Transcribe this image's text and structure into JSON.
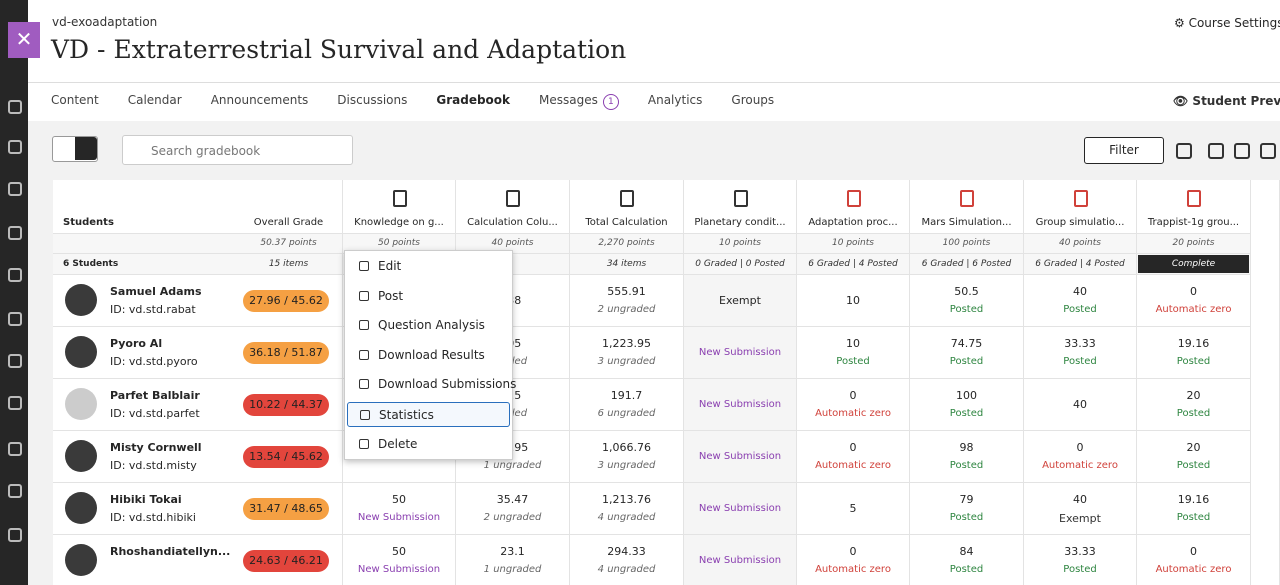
{
  "header": {
    "course_id": "vd-exoadaptation",
    "title": "VD - Extraterrestrial Survival and Adaptation",
    "settings": "Course Settings"
  },
  "nav": {
    "tabs": [
      "Content",
      "Calendar",
      "Announcements",
      "Discussions",
      "Gradebook",
      "Messages",
      "Analytics",
      "Groups"
    ],
    "active": 4,
    "messages_badge": "1",
    "preview": "Student Preview"
  },
  "toolbar": {
    "search_placeholder": "Search gradebook",
    "filter": "Filter"
  },
  "table": {
    "columns": [
      {
        "header": "Students",
        "summary": "6 Students"
      },
      {
        "header": "Overall Grade",
        "points": "50.37 points",
        "summary": "15 items"
      },
      {
        "header": "Knowledge on g...",
        "points": "50 points",
        "icon": "#333"
      },
      {
        "header": "Calculation Colu...",
        "points": "40 points",
        "icon": "#333"
      },
      {
        "header": "Total Calculation",
        "points": "2,270 points",
        "summary": "34 items",
        "icon": "#333"
      },
      {
        "header": "Planetary condit...",
        "points": "10 points",
        "summary": "0 Graded | 0 Posted",
        "icon": "#333"
      },
      {
        "header": "Adaptation proc...",
        "points": "10 points",
        "summary": "6 Graded | 4 Posted",
        "icon": "#d0413a"
      },
      {
        "header": "Mars Simulation...",
        "points": "100 points",
        "summary": "6 Graded | 6 Posted",
        "icon": "#d0413a"
      },
      {
        "header": "Group simulatio...",
        "points": "40 points",
        "summary": "6 Graded | 4 Posted",
        "icon": "#d0413a"
      },
      {
        "header": "Trappist-1g grou...",
        "points": "20 points",
        "summary": "Complete",
        "highlight": true,
        "icon": "#d0413a"
      }
    ],
    "rows": [
      {
        "name": "Samuel Adams",
        "id": "ID: vd.std.rabat",
        "overall": "27.96 / 45.62",
        "pill": "#f5a043",
        "cells": [
          {},
          {
            "value": ".38"
          },
          {
            "value": "555.91",
            "status": "2 ungraded",
            "tone": "gray"
          },
          {
            "value": "Exempt"
          },
          {
            "value": "10"
          },
          {
            "value": "50.5",
            "status": "Posted",
            "tone": "green"
          },
          {
            "value": "40",
            "status": "Posted",
            "tone": "green"
          },
          {
            "value": "0",
            "status": "Automatic zero",
            "tone": "red"
          }
        ]
      },
      {
        "name": "Pyoro Al",
        "id": "ID: vd.std.pyoro",
        "overall": "36.18 / 51.87",
        "pill": "#f5a043",
        "cells": [
          {},
          {
            "value": ".05",
            "status": "raded",
            "tone": "gray"
          },
          {
            "value": "1,223.95",
            "status": "3 ungraded",
            "tone": "gray"
          },
          {
            "status": "New Submission",
            "tone": "purple"
          },
          {
            "value": "10",
            "status": "Posted",
            "tone": "green"
          },
          {
            "value": "74.75",
            "status": "Posted",
            "tone": "green"
          },
          {
            "value": "33.33",
            "status": "Posted",
            "tone": "green"
          },
          {
            "value": "19.16",
            "status": "Posted",
            "tone": "green"
          }
        ]
      },
      {
        "name": "Parfet Balblair",
        "id": "ID: vd.std.parfet",
        "overall": "10.22 / 44.37",
        "pill": "#e2453c",
        "cells": [
          {},
          {
            "value": "7.5",
            "status": "raded",
            "tone": "gray"
          },
          {
            "value": "191.7",
            "status": "6 ungraded",
            "tone": "gray"
          },
          {
            "status": "New Submission",
            "tone": "purple"
          },
          {
            "value": "0",
            "status": "Automatic zero",
            "tone": "red"
          },
          {
            "value": "100",
            "status": "Posted",
            "tone": "green"
          },
          {
            "value": "40"
          },
          {
            "value": "20",
            "status": "Posted",
            "tone": "green"
          }
        ]
      },
      {
        "name": "Misty Cornwell",
        "id": "ID: vd.std.misty",
        "overall": "13.54 / 45.62",
        "pill": "#e2453c",
        "cells": [
          {
            "status": "Automatic zero",
            "tone": "red"
          },
          {
            "value": "20.95",
            "status": "1 ungraded",
            "tone": "gray"
          },
          {
            "value": "1,066.76",
            "status": "3 ungraded",
            "tone": "gray"
          },
          {
            "status": "New Submission",
            "tone": "purple"
          },
          {
            "value": "0",
            "status": "Automatic zero",
            "tone": "red"
          },
          {
            "value": "98",
            "status": "Posted",
            "tone": "green"
          },
          {
            "value": "0",
            "status": "Automatic zero",
            "tone": "red"
          },
          {
            "value": "20",
            "status": "Posted",
            "tone": "green"
          }
        ]
      },
      {
        "name": "Hibiki Tokai",
        "id": "ID: vd.std.hibiki",
        "overall": "31.47 / 48.65",
        "pill": "#f5a043",
        "cells": [
          {
            "value": "50",
            "status": "New Submission",
            "tone": "purple"
          },
          {
            "value": "35.47",
            "status": "2 ungraded",
            "tone": "gray"
          },
          {
            "value": "1,213.76",
            "status": "4 ungraded",
            "tone": "gray"
          },
          {
            "status": "New Submission",
            "tone": "purple"
          },
          {
            "value": "5"
          },
          {
            "value": "79",
            "status": "Posted",
            "tone": "green"
          },
          {
            "value": "40",
            "status": "Exempt",
            "tone": "black"
          },
          {
            "value": "19.16",
            "status": "Posted",
            "tone": "green"
          }
        ]
      },
      {
        "name": "Rhoshandiatellyn...",
        "overall": "24.63 / 46.21",
        "pill": "#e2453c",
        "cells": [
          {
            "value": "50",
            "status": "New Submission",
            "tone": "purple"
          },
          {
            "value": "23.1",
            "status": "1 ungraded",
            "tone": "gray"
          },
          {
            "value": "294.33",
            "status": "4 ungraded",
            "tone": "gray"
          },
          {
            "status": "New Submission",
            "tone": "purple"
          },
          {
            "value": "0",
            "status": "Automatic zero",
            "tone": "red"
          },
          {
            "value": "84",
            "status": "Posted",
            "tone": "green"
          },
          {
            "value": "33.33",
            "status": "Posted",
            "tone": "green"
          },
          {
            "value": "0",
            "status": "Automatic zero",
            "tone": "red"
          }
        ]
      }
    ]
  },
  "menu": {
    "items": [
      "Edit",
      "Post",
      "Question Analysis",
      "Download Results",
      "Download Submissions",
      "Statistics",
      "Delete"
    ],
    "selected": 5
  }
}
